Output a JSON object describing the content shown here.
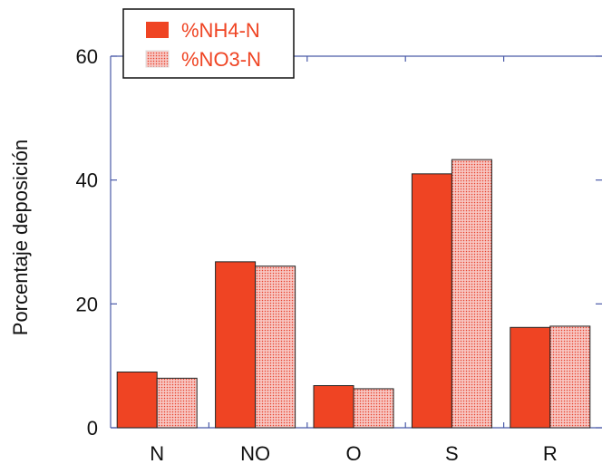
{
  "chart_data": {
    "type": "bar",
    "title": "",
    "xlabel": "",
    "ylabel": "Porcentaje deposición",
    "categories": [
      "N",
      "NO",
      "O",
      "S",
      "R"
    ],
    "series": [
      {
        "name": "%NH4-N",
        "values": [
          9.0,
          26.8,
          6.8,
          41.0,
          16.2
        ]
      },
      {
        "name": "%NO3-N",
        "values": [
          8.0,
          26.1,
          6.3,
          43.3,
          16.4
        ]
      }
    ],
    "ylim": [
      0,
      60
    ],
    "yticks": [
      0,
      20,
      40,
      60
    ],
    "ytick_labels": [
      "0",
      "20",
      "40",
      "60"
    ],
    "legend_position": "top-left",
    "grid": false,
    "colors": {
      "nh4": "#ef4423",
      "no3_fill": "#f7c6c2",
      "no3_dot": "#e8402a",
      "bar_edge": "#222222",
      "axis": "#4a5aa8",
      "legend_text": "#ef4423"
    }
  }
}
